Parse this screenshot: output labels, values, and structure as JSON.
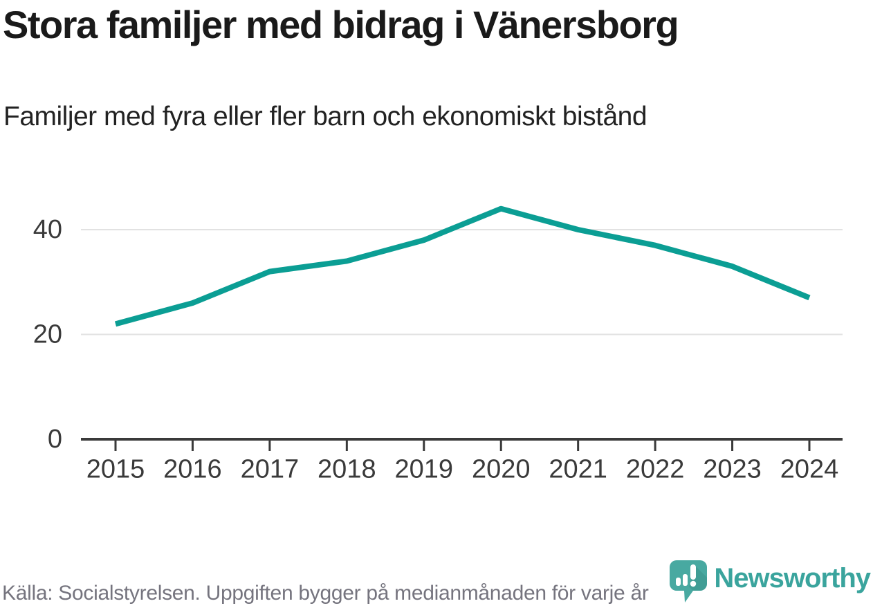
{
  "header": {
    "title": "Stora familjer med bidrag i Vänersborg",
    "subtitle": "Familjer med fyra eller fler barn och ekonomiskt bistånd"
  },
  "footer": {
    "source": "Källa: Socialstyrelsen. Uppgiften bygger på medianmånaden för varje år",
    "brand_name": "Newsworthy"
  },
  "colors": {
    "line": "#0b9e94",
    "grid": "#e2e2e2",
    "axis": "#3a3a3a",
    "tick_label": "#3a3a3a",
    "title": "#1a1a1a",
    "subtitle": "#222222",
    "source_text": "#75747e",
    "brand_teal": "#3aa49d",
    "brand_bubble": "#48a9a1",
    "brand_bubble_shade": "#3a948d",
    "background": "#ffffff"
  },
  "icons": {
    "brand_icon": "newsworthy-speech-bubble-chart-icon"
  },
  "chart_data": {
    "type": "line",
    "title": "Stora familjer med bidrag i Vänersborg",
    "subtitle": "Familjer med fyra eller fler barn och ekonomiskt bistånd",
    "categories": [
      "2015",
      "2016",
      "2017",
      "2018",
      "2019",
      "2020",
      "2021",
      "2022",
      "2023",
      "2024"
    ],
    "values": [
      22,
      26,
      32,
      34,
      38,
      44,
      40,
      37,
      33,
      27
    ],
    "series_name": "Familjer med fyra eller fler barn och ekonomiskt bistånd",
    "xlabel": "",
    "ylabel": "",
    "ylim": [
      0,
      47
    ],
    "yticks": [
      0,
      20,
      40
    ],
    "grid": "horizontal",
    "legend": "none",
    "line_color": "#0b9e94"
  }
}
